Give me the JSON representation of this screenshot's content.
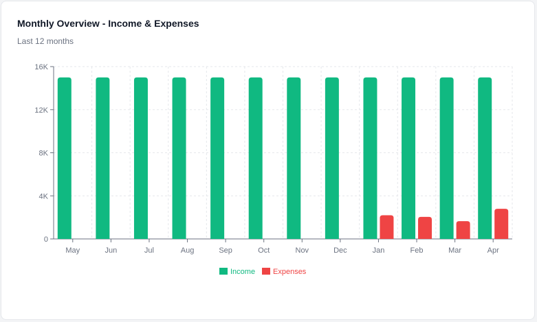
{
  "card": {
    "title": "Monthly Overview - Income & Expenses",
    "subtitle": "Last 12 months"
  },
  "colors": {
    "income": "#10b981",
    "expenses": "#ef4444",
    "grid": "#e5e7eb",
    "axis": "#6b7280"
  },
  "chart_data": {
    "type": "bar",
    "categories": [
      "May",
      "Jun",
      "Jul",
      "Aug",
      "Sep",
      "Oct",
      "Nov",
      "Dec",
      "Jan",
      "Feb",
      "Mar",
      "Apr"
    ],
    "series": [
      {
        "name": "Income",
        "color": "#10b981",
        "values": [
          15000,
          15000,
          15000,
          15000,
          15000,
          15000,
          15000,
          15000,
          15000,
          15000,
          15000,
          15000
        ]
      },
      {
        "name": "Expenses",
        "color": "#ef4444",
        "values": [
          0,
          0,
          0,
          0,
          0,
          0,
          0,
          0,
          2200,
          2050,
          1650,
          2800
        ]
      }
    ],
    "y_ticks": [
      0,
      4000,
      8000,
      12000,
      16000
    ],
    "y_tick_labels": [
      "0",
      "4K",
      "8K",
      "12K",
      "16K"
    ],
    "ylim": [
      0,
      16000
    ],
    "grid": true,
    "legend_position": "bottom"
  }
}
